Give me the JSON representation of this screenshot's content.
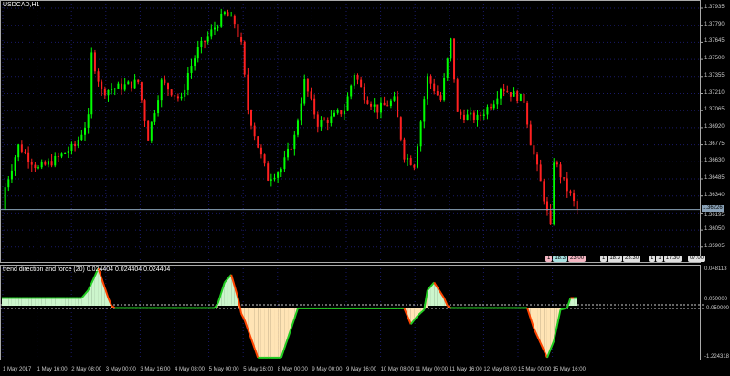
{
  "window": {
    "symbol_title": "USDCAD,H1"
  },
  "indicator": {
    "title": "trend direction and force (20) 0.024404 0.024404 0.024404",
    "axis_labels": [
      "0.048113",
      "0.050000",
      "-0.050000",
      "-1.224318"
    ],
    "colors": {
      "up": "#22cc22",
      "down": "#ff4400",
      "pos_fill": "#ccf5cc",
      "neg_fill": "#ffe4b5"
    }
  },
  "price_axis": {
    "labels": [
      "1.37935",
      "1.37790",
      "1.37645",
      "1.37500",
      "1.37355",
      "1.37210",
      "1.37065",
      "1.36920",
      "1.36775",
      "1.36630",
      "1.36485",
      "1.36340",
      "1.36195",
      "1.36050",
      "1.35905"
    ],
    "current_price": "1.36226"
  },
  "time_axis": {
    "labels": [
      "1 May 2017",
      "1 May 16:00",
      "2 May 08:00",
      "3 May 00:00",
      "3 May 16:00",
      "4 May 08:00",
      "5 May 00:00",
      "5 May 16:00",
      "8 May 00:00",
      "9 May 00:00",
      "9 May 16:00",
      "10 May 08:00",
      "11 May 00:00",
      "11 May 16:00",
      "12 May 08:00",
      "15 May 00:00",
      "15 May 16:00"
    ]
  },
  "event_flags": [
    {
      "text": "1",
      "color": "#f4b6c2"
    },
    {
      "text": "18:3",
      "color": "#a8e0e0"
    },
    {
      "text": "23:00",
      "color": "#f4b6c2"
    },
    {
      "text": "1",
      "color": "#e0e0e0"
    },
    {
      "text": "18:3",
      "color": "#e0e0e0"
    },
    {
      "text": "23:30",
      "color": "#e0e0e0"
    },
    {
      "text": "1",
      "color": "#e0e0e0"
    },
    {
      "text": "1",
      "color": "#e0e0e0"
    },
    {
      "text": "17:30",
      "color": "#e0e0e0"
    },
    {
      "text": "07:00",
      "color": "#e0e0e0"
    }
  ],
  "colors": {
    "bull": "#00ff00",
    "bear": "#ff2020",
    "grid": "#1a1a6a",
    "axis": "#c0c0c0"
  },
  "chart_data": [
    {
      "type": "candlestick",
      "title": "USDCAD,H1",
      "ylim": [
        1.35905,
        1.37935
      ],
      "close_anchors": [
        [
          1,
          1.36416
        ],
        [
          5,
          1.36765
        ],
        [
          11,
          1.36571
        ],
        [
          16,
          1.36649
        ],
        [
          22,
          1.36765
        ],
        [
          26,
          1.36997
        ],
        [
          27,
          1.3754
        ],
        [
          30,
          1.3723
        ],
        [
          36,
          1.37269
        ],
        [
          41,
          1.37307
        ],
        [
          44,
          1.36842
        ],
        [
          48,
          1.37307
        ],
        [
          54,
          1.37152
        ],
        [
          56,
          1.37385
        ],
        [
          59,
          1.37579
        ],
        [
          62,
          1.37695
        ],
        [
          67,
          1.37888
        ],
        [
          70,
          1.37811
        ],
        [
          72,
          1.37617
        ],
        [
          74,
          1.37075
        ],
        [
          77,
          1.36765
        ],
        [
          80,
          1.36494
        ],
        [
          84,
          1.36571
        ],
        [
          88,
          1.36842
        ],
        [
          91,
          1.37307
        ],
        [
          95,
          1.36959
        ],
        [
          99,
          1.36997
        ],
        [
          103,
          1.37075
        ],
        [
          106,
          1.37385
        ],
        [
          109,
          1.37191
        ],
        [
          113,
          1.37075
        ],
        [
          118,
          1.37152
        ],
        [
          121,
          1.36687
        ],
        [
          124,
          1.3661
        ],
        [
          128,
          1.37346
        ],
        [
          132,
          1.37152
        ],
        [
          135,
          1.37656
        ],
        [
          137,
          1.37036
        ],
        [
          143,
          1.36997
        ],
        [
          148,
          1.37152
        ],
        [
          150,
          1.37269
        ],
        [
          152,
          1.3723
        ],
        [
          157,
          1.37152
        ],
        [
          159,
          1.36804
        ],
        [
          162,
          1.36455
        ],
        [
          165,
          1.36068
        ],
        [
          166,
          1.36649
        ],
        [
          169,
          1.36455
        ],
        [
          173,
          1.36226
        ]
      ]
    },
    {
      "type": "area",
      "title": "trend direction and force (20)",
      "ylim": [
        -1.224318,
        0.048113
      ],
      "levels": [
        0.05,
        -0.05
      ],
      "anchors": [
        [
          0,
          0.01
        ],
        [
          24,
          0.01
        ],
        [
          26,
          0.02
        ],
        [
          29,
          0.048
        ],
        [
          32,
          0.01
        ],
        [
          34,
          -0.01
        ],
        [
          64,
          -0.01
        ],
        [
          67,
          0.03
        ],
        [
          69,
          0.04
        ],
        [
          71,
          0.01
        ],
        [
          73,
          -0.3
        ],
        [
          77,
          -1.2
        ],
        [
          84,
          -1.2
        ],
        [
          87,
          -0.5
        ],
        [
          89,
          -0.02
        ],
        [
          121,
          -0.02
        ],
        [
          123,
          -0.4
        ],
        [
          125,
          -0.2
        ],
        [
          128,
          0.02
        ],
        [
          130,
          0.03
        ],
        [
          133,
          0.01
        ],
        [
          135,
          -0.01
        ],
        [
          158,
          -0.01
        ],
        [
          160,
          -0.5
        ],
        [
          164,
          -1.2
        ],
        [
          166,
          -0.8
        ],
        [
          168,
          -0.05
        ],
        [
          171,
          0.01
        ],
        [
          173,
          0.01
        ]
      ]
    }
  ]
}
